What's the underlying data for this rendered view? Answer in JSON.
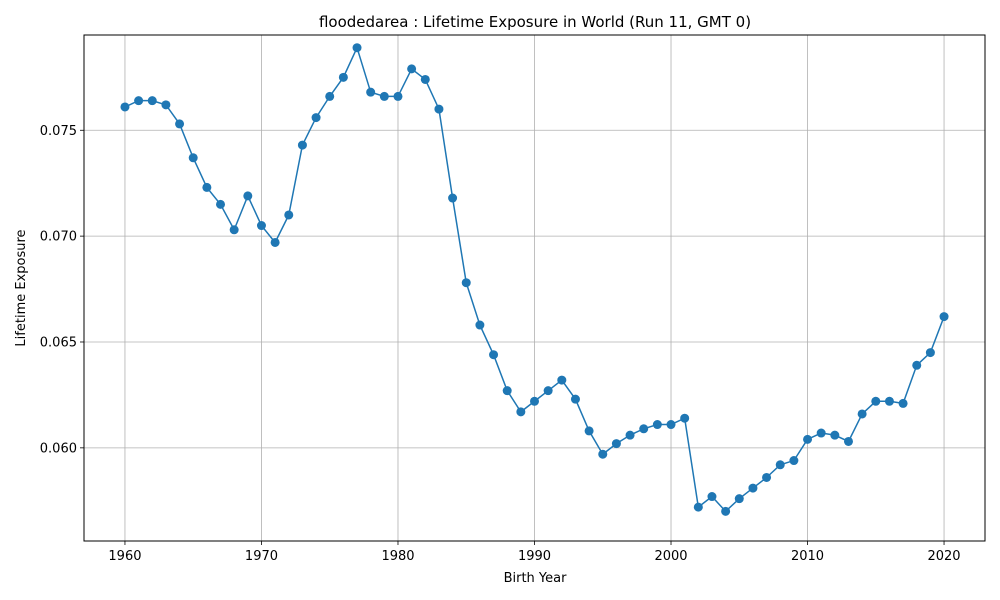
{
  "chart_data": {
    "type": "line",
    "title": "floodedarea : Lifetime Exposure in World (Run 11, GMT 0)",
    "xlabel": "Birth Year",
    "ylabel": "Lifetime Exposure",
    "xlim": [
      1957,
      2023
    ],
    "ylim": [
      0.0556,
      0.0795
    ],
    "xticks": [
      1960,
      1970,
      1980,
      1990,
      2000,
      2010,
      2020
    ],
    "yticks": [
      0.06,
      0.065,
      0.07,
      0.075
    ],
    "ytick_labels": [
      "0.060",
      "0.065",
      "0.070",
      "0.075"
    ],
    "grid": true,
    "marker": "circle",
    "color": "#1f77b4",
    "x": [
      1960,
      1961,
      1962,
      1963,
      1964,
      1965,
      1966,
      1967,
      1968,
      1969,
      1970,
      1971,
      1972,
      1973,
      1974,
      1975,
      1976,
      1977,
      1978,
      1979,
      1980,
      1981,
      1982,
      1983,
      1984,
      1985,
      1986,
      1987,
      1988,
      1989,
      1990,
      1991,
      1992,
      1993,
      1994,
      1995,
      1996,
      1997,
      1998,
      1999,
      2000,
      2001,
      2002,
      2003,
      2004,
      2005,
      2006,
      2007,
      2008,
      2009,
      2010,
      2011,
      2012,
      2013,
      2014,
      2015,
      2016,
      2017,
      2018,
      2019,
      2020
    ],
    "y": [
      0.0761,
      0.0764,
      0.0764,
      0.0762,
      0.0753,
      0.0737,
      0.0723,
      0.0715,
      0.0703,
      0.0719,
      0.0705,
      0.0697,
      0.071,
      0.0743,
      0.0756,
      0.0766,
      0.0775,
      0.0789,
      0.0768,
      0.0766,
      0.0766,
      0.0779,
      0.0774,
      0.076,
      0.0718,
      0.0678,
      0.0658,
      0.0644,
      0.0627,
      0.0617,
      0.0622,
      0.0627,
      0.0632,
      0.0623,
      0.0608,
      0.0597,
      0.0602,
      0.0606,
      0.0609,
      0.0611,
      0.0611,
      0.0614,
      0.0572,
      0.0577,
      0.057,
      0.0576,
      0.0581,
      0.0586,
      0.0592,
      0.0594,
      0.0604,
      0.0607,
      0.0606,
      0.0603,
      0.0616,
      0.0622,
      0.0622,
      0.0621,
      0.0639,
      0.0645,
      0.0662
    ]
  }
}
